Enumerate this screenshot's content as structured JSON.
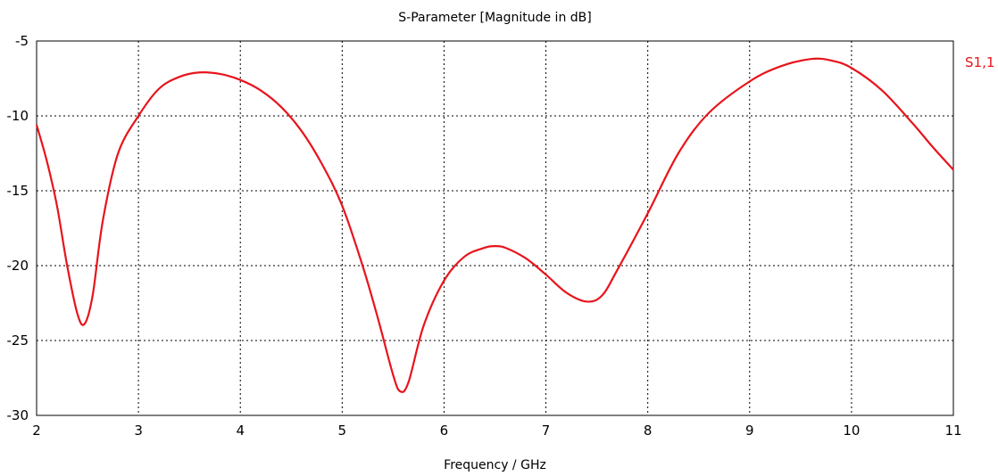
{
  "chart_data": {
    "type": "line",
    "title": "S-Parameter [Magnitude in dB]",
    "xlabel": "Frequency / GHz",
    "ylabel": "",
    "xlim": [
      2,
      11
    ],
    "ylim": [
      -30,
      -5
    ],
    "xticks": [
      2,
      3,
      4,
      5,
      6,
      7,
      8,
      9,
      10,
      11
    ],
    "yticks": [
      -5,
      -10,
      -15,
      -20,
      -25,
      -30
    ],
    "grid": true,
    "legend_position": "right",
    "colors": {
      "series": "#e8141c",
      "grid": "#000000",
      "axis": "#000000"
    },
    "series": [
      {
        "name": "S1,1",
        "x": [
          2.0,
          2.1,
          2.2,
          2.3,
          2.4,
          2.47,
          2.55,
          2.65,
          2.8,
          3.0,
          3.2,
          3.4,
          3.6,
          3.8,
          4.0,
          4.2,
          4.4,
          4.6,
          4.8,
          5.0,
          5.2,
          5.35,
          5.5,
          5.57,
          5.65,
          5.8,
          6.0,
          6.2,
          6.4,
          6.5,
          6.6,
          6.8,
          7.0,
          7.2,
          7.4,
          7.55,
          7.7,
          8.0,
          8.3,
          8.6,
          9.0,
          9.3,
          9.6,
          9.8,
          10.0,
          10.3,
          10.6,
          10.8,
          11.0
        ],
        "y": [
          -10.6,
          -13.0,
          -16.0,
          -20.0,
          -23.2,
          -23.9,
          -22.0,
          -17.0,
          -12.5,
          -10.0,
          -8.2,
          -7.4,
          -7.1,
          -7.2,
          -7.6,
          -8.3,
          -9.4,
          -11.0,
          -13.2,
          -16.0,
          -20.0,
          -23.5,
          -27.3,
          -28.4,
          -27.8,
          -24.0,
          -21.0,
          -19.4,
          -18.8,
          -18.7,
          -18.8,
          -19.5,
          -20.6,
          -21.8,
          -22.4,
          -22.0,
          -20.3,
          -16.5,
          -12.5,
          -9.8,
          -7.7,
          -6.7,
          -6.2,
          -6.3,
          -6.8,
          -8.3,
          -10.5,
          -12.1,
          -13.6
        ]
      }
    ]
  }
}
